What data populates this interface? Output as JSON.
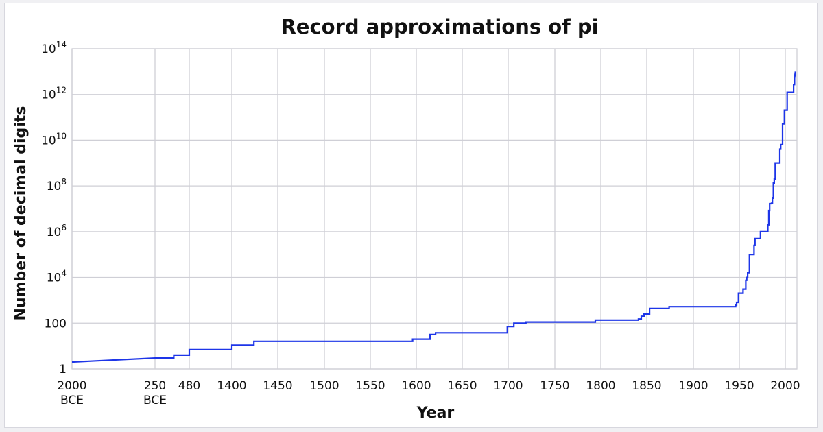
{
  "chart_data": {
    "type": "line",
    "title": "Record approximations of pi",
    "xlabel": "Year",
    "ylabel": "Number of decimal digits",
    "y_scale": "log10",
    "ylim": [
      1,
      100000000000000
    ],
    "grid": true,
    "legend": "none",
    "x_scale": "piecewise (axis breaks between labeled years)",
    "x_ticks": [
      {
        "value": -2000,
        "label": "2000",
        "sublabel": "BCE"
      },
      {
        "value": -250,
        "label": "250",
        "sublabel": "BCE"
      },
      {
        "value": 480,
        "label": "480",
        "sublabel": ""
      },
      {
        "value": 1400,
        "label": "1400",
        "sublabel": ""
      },
      {
        "value": 1450,
        "label": "1450",
        "sublabel": ""
      },
      {
        "value": 1500,
        "label": "1500",
        "sublabel": ""
      },
      {
        "value": 1550,
        "label": "1550",
        "sublabel": ""
      },
      {
        "value": 1600,
        "label": "1600",
        "sublabel": ""
      },
      {
        "value": 1650,
        "label": "1650",
        "sublabel": ""
      },
      {
        "value": 1700,
        "label": "1700",
        "sublabel": ""
      },
      {
        "value": 1750,
        "label": "1750",
        "sublabel": ""
      },
      {
        "value": 1800,
        "label": "1800",
        "sublabel": ""
      },
      {
        "value": 1850,
        "label": "1850",
        "sublabel": ""
      },
      {
        "value": 1900,
        "label": "1900",
        "sublabel": ""
      },
      {
        "value": 1950,
        "label": "1950",
        "sublabel": ""
      },
      {
        "value": 2000,
        "label": "2000",
        "sublabel": ""
      }
    ],
    "y_ticks": [
      {
        "value": 1,
        "base": "1",
        "exp": ""
      },
      {
        "value": 100,
        "base": "100",
        "exp": ""
      },
      {
        "value": 10000,
        "base": "10",
        "exp": "4"
      },
      {
        "value": 1000000,
        "base": "10",
        "exp": "6"
      },
      {
        "value": 100000000,
        "base": "10",
        "exp": "8"
      },
      {
        "value": 10000000000,
        "base": "10",
        "exp": "10"
      },
      {
        "value": 1000000000000,
        "base": "10",
        "exp": "12"
      },
      {
        "value": 100000000000000,
        "base": "10",
        "exp": "14"
      }
    ],
    "colors": {
      "series": "#1d35e8",
      "grid": "#cfcfd6"
    },
    "series": [
      {
        "points": [
          [
            -2000,
            2
          ],
          [
            -250,
            3
          ],
          [
            150,
            3
          ],
          [
            150,
            4
          ],
          [
            480,
            4
          ],
          [
            480,
            7
          ],
          [
            1400,
            7
          ],
          [
            1400,
            11
          ],
          [
            1424,
            11
          ],
          [
            1424,
            16
          ],
          [
            1596,
            16
          ],
          [
            1596,
            20
          ],
          [
            1615,
            20
          ],
          [
            1615,
            32
          ],
          [
            1621,
            32
          ],
          [
            1621,
            38
          ],
          [
            1699,
            38
          ],
          [
            1699,
            71
          ],
          [
            1706,
            71
          ],
          [
            1706,
            100
          ],
          [
            1719,
            100
          ],
          [
            1719,
            112
          ],
          [
            1794,
            112
          ],
          [
            1794,
            136
          ],
          [
            1841,
            136
          ],
          [
            1841,
            152
          ],
          [
            1844,
            152
          ],
          [
            1844,
            200
          ],
          [
            1847,
            200
          ],
          [
            1847,
            248
          ],
          [
            1853,
            248
          ],
          [
            1853,
            440
          ],
          [
            1874,
            440
          ],
          [
            1874,
            527
          ],
          [
            1946,
            527
          ],
          [
            1946,
            620
          ],
          [
            1947,
            620
          ],
          [
            1947,
            808
          ],
          [
            1949,
            808
          ],
          [
            1949,
            2037
          ],
          [
            1954,
            2037
          ],
          [
            1954,
            3089
          ],
          [
            1957,
            3089
          ],
          [
            1957,
            7480
          ],
          [
            1958,
            7480
          ],
          [
            1958,
            10000
          ],
          [
            1959,
            10000
          ],
          [
            1959,
            16167
          ],
          [
            1961,
            16167
          ],
          [
            1961,
            100265
          ],
          [
            1966,
            100265
          ],
          [
            1966,
            250000
          ],
          [
            1967,
            250000
          ],
          [
            1967,
            500000
          ],
          [
            1973,
            500000
          ],
          [
            1973,
            1001250
          ],
          [
            1981,
            1001250
          ],
          [
            1981,
            2000036
          ],
          [
            1982,
            2000036
          ],
          [
            1982,
            8388576
          ],
          [
            1983,
            8388576
          ],
          [
            1983,
            16777206
          ],
          [
            1985,
            16777206
          ],
          [
            1985,
            17526200
          ],
          [
            1986,
            17526200
          ],
          [
            1986,
            29360111
          ],
          [
            1987,
            29360111
          ],
          [
            1987,
            134214700
          ],
          [
            1988,
            134214700
          ],
          [
            1988,
            201326551
          ],
          [
            1989,
            201326551
          ],
          [
            1989,
            1011196691
          ],
          [
            1994,
            1011196691
          ],
          [
            1994,
            4044000000
          ],
          [
            1995,
            4044000000
          ],
          [
            1995,
            6442450938
          ],
          [
            1997,
            6442450938
          ],
          [
            1997,
            51539600000
          ],
          [
            1999,
            51539600000
          ],
          [
            1999,
            206158430000
          ],
          [
            2002,
            206158430000
          ],
          [
            2002,
            1241100000000
          ],
          [
            2009,
            1241100000000
          ],
          [
            2009,
            2699999990000
          ],
          [
            2010,
            2699999990000
          ],
          [
            2010,
            5000000000000
          ],
          [
            2011,
            10000000000000
          ]
        ]
      }
    ]
  }
}
